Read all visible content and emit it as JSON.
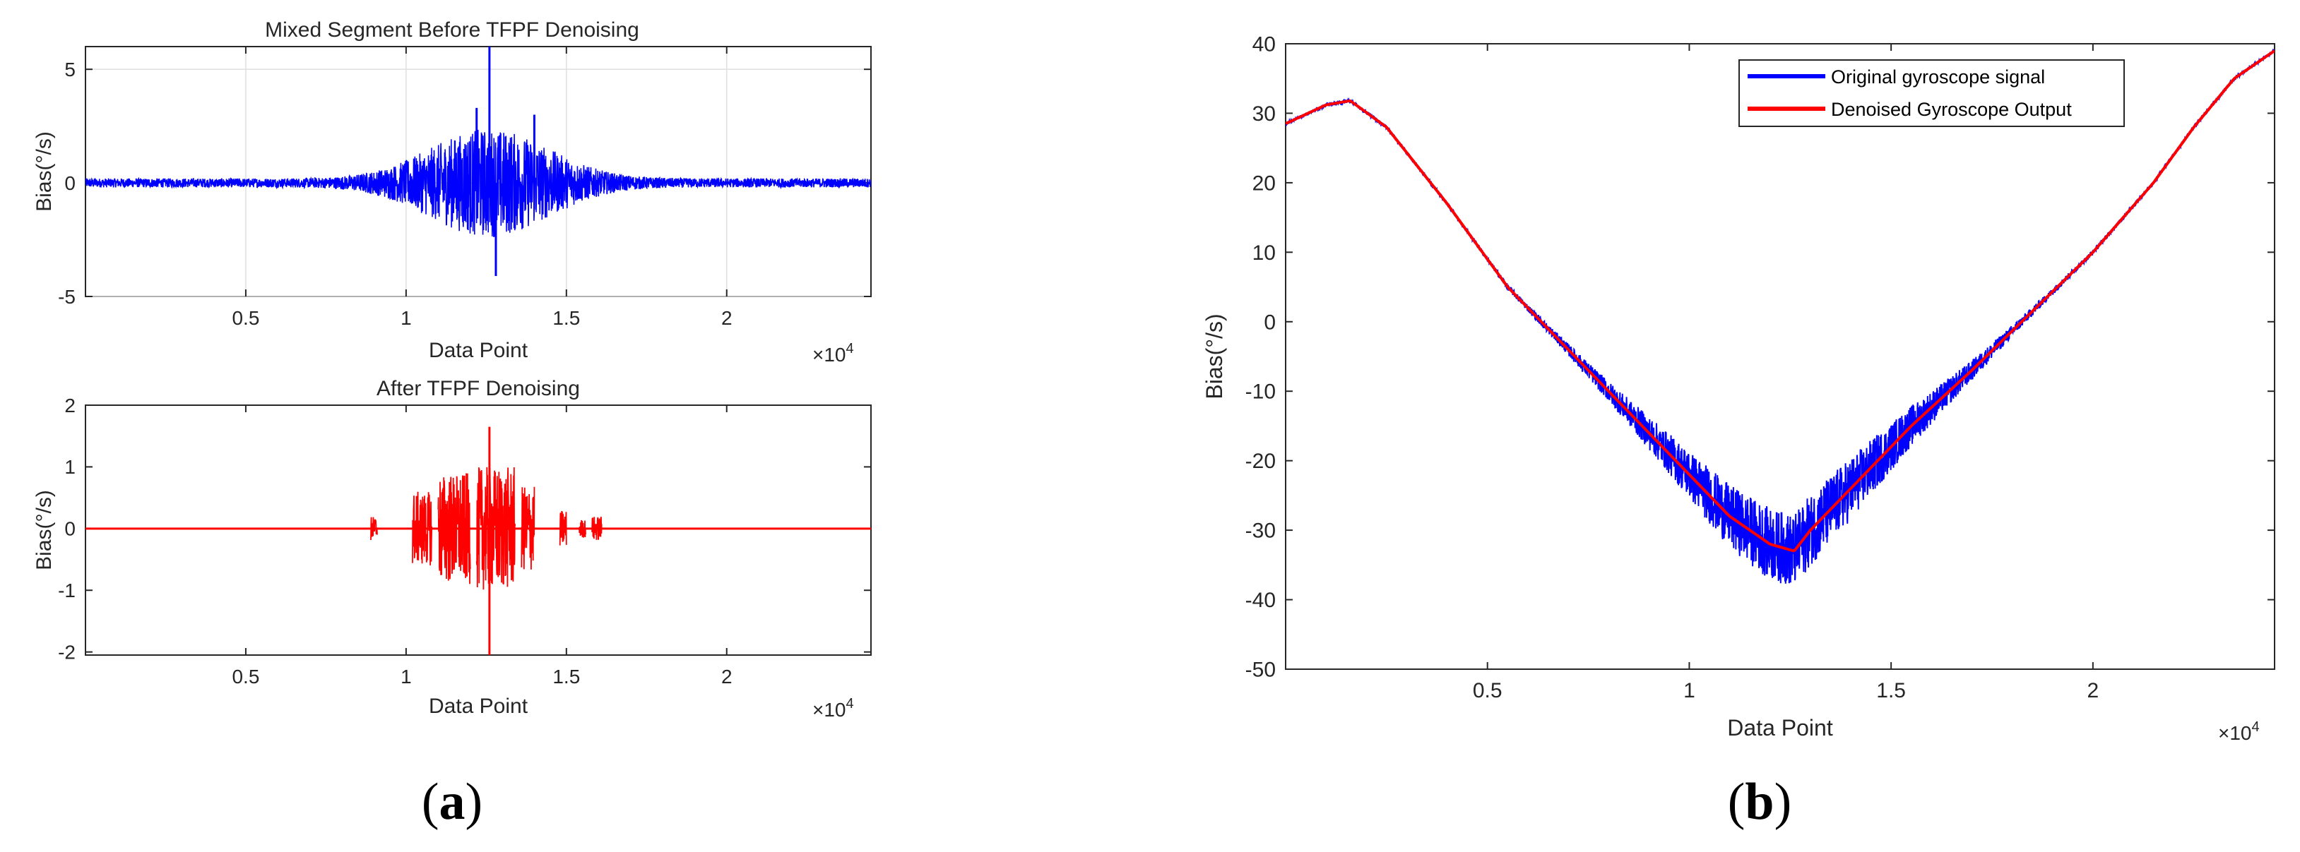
{
  "panel_labels": {
    "a": "a",
    "b": "b"
  },
  "chart_data": [
    {
      "id": "a-top",
      "type": "line",
      "title": "Mixed Segment Before TFPF Denoising",
      "xlabel": "Data Point",
      "ylabel": "Bias(°/s)",
      "x_multiplier": "×10",
      "x_multiplier_exp": "4",
      "xlim": [
        0,
        2.45
      ],
      "ylim": [
        -5,
        6
      ],
      "xticks": [
        0.5,
        1,
        1.5,
        2
      ],
      "xtick_labels": [
        "0.5",
        "1",
        "1.5",
        "2"
      ],
      "yticks": [
        -5,
        0,
        5
      ],
      "ytick_labels": [
        "-5",
        "0",
        "5"
      ],
      "grid": true,
      "series": [
        {
          "color": "#0000ff",
          "baseline": 0,
          "envelope_center": 1.26,
          "envelope_width": 0.26,
          "peak_amplitude": 2.2,
          "floor_amplitude": 0.2,
          "spikes": [
            [
              1.26,
              6.1
            ],
            [
              1.28,
              -4.1
            ],
            [
              1.22,
              3.3
            ],
            [
              1.4,
              3.0
            ]
          ]
        }
      ]
    },
    {
      "id": "a-bottom",
      "type": "line",
      "title": "After TFPF Denoising",
      "xlabel": "Data Point",
      "ylabel": "Bias(°/s)",
      "x_multiplier": "×10",
      "x_multiplier_exp": "4",
      "xlim": [
        0,
        2.45
      ],
      "ylim": [
        -2.05,
        2
      ],
      "xticks": [
        0.5,
        1,
        1.5,
        2
      ],
      "xtick_labels": [
        "0.5",
        "1",
        "1.5",
        "2"
      ],
      "yticks": [
        -2,
        -1,
        0,
        1,
        2
      ],
      "ytick_labels": [
        "-2",
        "-1",
        "0",
        "1",
        "2"
      ],
      "grid": false,
      "series": [
        {
          "color": "#ff0000",
          "baseline": 0,
          "bursts": [
            [
              0.89,
              0.91,
              0.2
            ],
            [
              1.02,
              1.08,
              0.6
            ],
            [
              1.1,
              1.2,
              0.9
            ],
            [
              1.22,
              1.34,
              1.0
            ],
            [
              1.36,
              1.4,
              0.7
            ],
            [
              1.48,
              1.5,
              0.3
            ],
            [
              1.54,
              1.56,
              0.15
            ],
            [
              1.58,
              1.61,
              0.2
            ]
          ],
          "spikes": [
            [
              1.26,
              1.65
            ],
            [
              1.26,
              -2.05
            ]
          ]
        }
      ]
    },
    {
      "id": "b",
      "type": "line",
      "title": "",
      "xlabel": "Data Point",
      "ylabel": "Bias(°/s)",
      "x_multiplier": "×10",
      "x_multiplier_exp": "4",
      "xlim": [
        0,
        2.45
      ],
      "ylim": [
        -50,
        40
      ],
      "xticks": [
        0.5,
        1,
        1.5,
        2
      ],
      "xtick_labels": [
        "0.5",
        "1",
        "1.5",
        "2"
      ],
      "yticks": [
        -50,
        -40,
        -30,
        -20,
        -10,
        0,
        10,
        20,
        30,
        40
      ],
      "ytick_labels": [
        "-50",
        "-40",
        "-30",
        "-20",
        "-10",
        "0",
        "10",
        "20",
        "30",
        "40"
      ],
      "grid": false,
      "legend_position": "top-right",
      "series": [
        {
          "name": "Original gyroscope signal",
          "color": "#0000ff",
          "noise_peak": 5,
          "noise_center": 1.25,
          "noise_width": 0.38,
          "noise_floor": 0.25
        },
        {
          "name": "Denoised Gyroscope Output",
          "color": "#ff0000",
          "noise_peak": 0
        }
      ],
      "trend": {
        "x": [
          0,
          0.1,
          0.16,
          0.25,
          0.4,
          0.55,
          0.7,
          0.85,
          1.0,
          1.1,
          1.2,
          1.26,
          1.3,
          1.4,
          1.55,
          1.7,
          1.85,
          2.0,
          2.15,
          2.25,
          2.35,
          2.45
        ],
        "y": [
          28.5,
          31.2,
          31.8,
          28,
          17,
          5,
          -4,
          -13,
          -22,
          -28,
          -32,
          -33,
          -30,
          -24,
          -15,
          -7,
          1.5,
          10,
          20,
          28,
          35,
          39
        ]
      }
    }
  ]
}
